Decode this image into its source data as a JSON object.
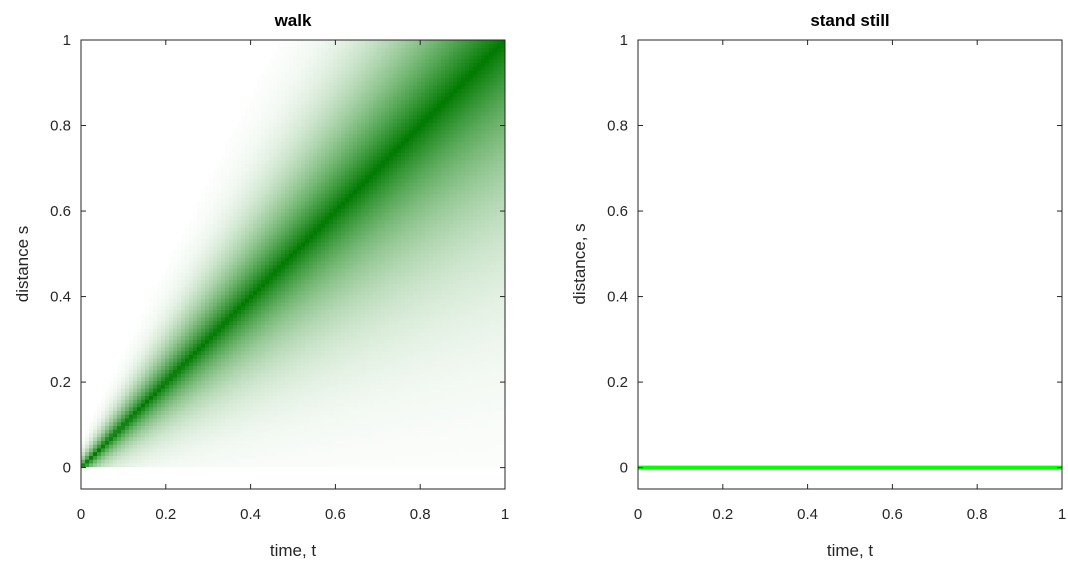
{
  "chart_data": [
    {
      "type": "heatmap",
      "title": "walk",
      "xlabel": "time, t",
      "ylabel": "distance s",
      "xlim": [
        0,
        1
      ],
      "ylim": [
        -0.05,
        1
      ],
      "xticks": [
        0,
        0.2,
        0.4,
        0.6,
        0.8,
        1
      ],
      "xtick_labels": [
        "0",
        "0.2",
        "0.4",
        "0.6",
        "0.8",
        "1"
      ],
      "yticks": [
        0,
        0.2,
        0.4,
        0.6,
        0.8,
        1
      ],
      "ytick_labels": [
        "0",
        "0.2",
        "0.4",
        "0.6",
        "0.8",
        "1"
      ],
      "grid": false,
      "colormap": "white to green",
      "color_low": "#ffffff",
      "color_high": "#007a00",
      "ridge": {
        "x": [
          0,
          1
        ],
        "y": [
          0,
          1
        ]
      }
    },
    {
      "type": "line",
      "title": "stand still",
      "xlabel": "time, t",
      "ylabel": "distance, s",
      "xlim": [
        0,
        1
      ],
      "ylim": [
        -0.05,
        1
      ],
      "xticks": [
        0,
        0.2,
        0.4,
        0.6,
        0.8,
        1
      ],
      "xtick_labels": [
        "0",
        "0.2",
        "0.4",
        "0.6",
        "0.8",
        "1"
      ],
      "yticks": [
        0,
        0.2,
        0.4,
        0.6,
        0.8,
        1
      ],
      "ytick_labels": [
        "0",
        "0.2",
        "0.4",
        "0.6",
        "0.8",
        "1"
      ],
      "grid": false,
      "series": [
        {
          "x": [
            0,
            1
          ],
          "y": [
            0,
            0
          ],
          "color": "#00ff00"
        }
      ]
    }
  ]
}
